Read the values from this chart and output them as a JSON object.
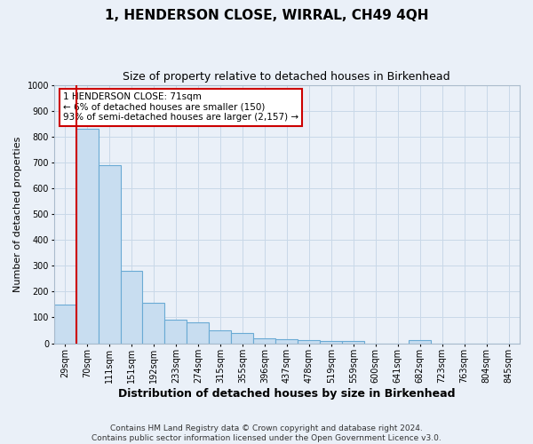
{
  "title": "1, HENDERSON CLOSE, WIRRAL, CH49 4QH",
  "subtitle": "Size of property relative to detached houses in Birkenhead",
  "xlabel": "Distribution of detached houses by size in Birkenhead",
  "ylabel": "Number of detached properties",
  "categories": [
    "29sqm",
    "70sqm",
    "111sqm",
    "151sqm",
    "192sqm",
    "233sqm",
    "274sqm",
    "315sqm",
    "355sqm",
    "396sqm",
    "437sqm",
    "478sqm",
    "519sqm",
    "559sqm",
    "600sqm",
    "641sqm",
    "682sqm",
    "723sqm",
    "763sqm",
    "804sqm",
    "845sqm"
  ],
  "values": [
    150,
    830,
    690,
    280,
    155,
    90,
    80,
    50,
    40,
    20,
    15,
    12,
    10,
    10,
    0,
    0,
    12,
    0,
    0,
    0,
    0
  ],
  "bar_color": "#c8ddf0",
  "bar_edge_color": "#6aaad4",
  "vline_color": "#cc0000",
  "annotation_text": "1 HENDERSON CLOSE: 71sqm\n← 6% of detached houses are smaller (150)\n93% of semi-detached houses are larger (2,157) →",
  "annotation_box_color": "#ffffff",
  "annotation_box_edge": "#cc0000",
  "ylim": [
    0,
    1000
  ],
  "yticks": [
    0,
    100,
    200,
    300,
    400,
    500,
    600,
    700,
    800,
    900,
    1000
  ],
  "grid_color": "#c8d8e8",
  "bg_color": "#eaf0f8",
  "fig_bg_color": "#eaf0f8",
  "footer": "Contains HM Land Registry data © Crown copyright and database right 2024.\nContains public sector information licensed under the Open Government Licence v3.0.",
  "title_fontsize": 11,
  "subtitle_fontsize": 9,
  "xlabel_fontsize": 9,
  "ylabel_fontsize": 8,
  "footer_fontsize": 6.5,
  "tick_fontsize": 7
}
